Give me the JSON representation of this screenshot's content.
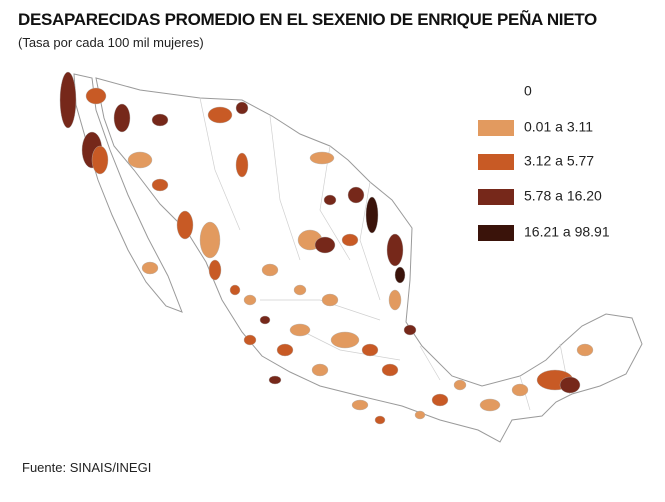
{
  "title": "DESAPARECIDAS PROMEDIO EN EL SEXENIO DE ENRIQUE PEÑA NIETO",
  "subtitle": "(Tasa por cada 100 mil mujeres)",
  "legend": [
    {
      "label": "0",
      "color": "#ffffff"
    },
    {
      "label": "0.01 a 3.11",
      "color": "#e29a5f"
    },
    {
      "label": "3.12 a 5.77",
      "color": "#c85a25"
    },
    {
      "label": "5.78 a 16.20",
      "color": "#76281a"
    },
    {
      "label": "16.21 a 98.91",
      "color": "#3a130a"
    }
  ],
  "source": "Fuente: SINAIS/INEGI"
}
